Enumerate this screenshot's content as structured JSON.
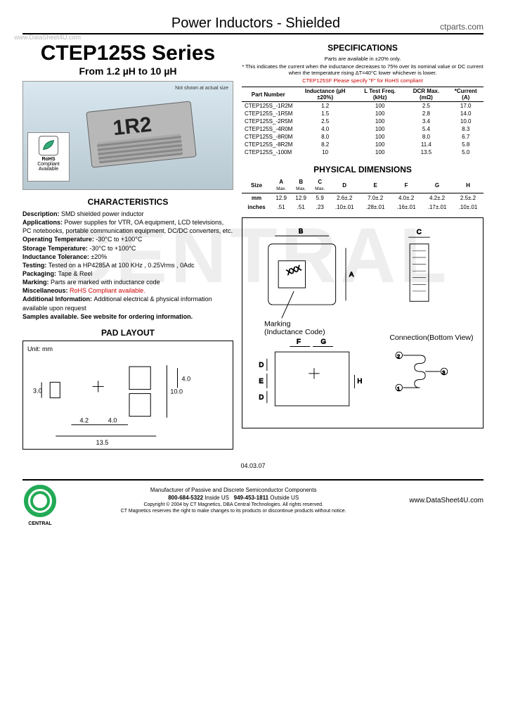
{
  "header": {
    "title": "Power Inductors - Shielded",
    "site": "ctparts.com",
    "watermark_url": "www.DataSheet4U.com"
  },
  "series": {
    "name": "CTEP125S Series",
    "range": "From 1.2 µH to 10 µH"
  },
  "product_image": {
    "chip_marking": "1R2",
    "not_shown": "Not shown at actual size",
    "rohs_top": "RoHS",
    "rohs_mid": "Compliant",
    "rohs_bot": "Available"
  },
  "characteristics": {
    "heading": "CHARACTERISTICS",
    "items": [
      {
        "k": "Description:",
        "v": "SMD shielded power inductor"
      },
      {
        "k": "Applications:",
        "v": "Power supplies for VTR, OA equipment, LCD televisions, PC notebooks, portable communication equipment, DC/DC converters, etc."
      },
      {
        "k": "Operating Temperature:",
        "v": "-30°C to +100°C"
      },
      {
        "k": "Storage Temperature:",
        "v": "-30°C to +100°C"
      },
      {
        "k": "Inductance Tolerance:",
        "v": "±20%"
      },
      {
        "k": "Testing:",
        "v": "Tested on a HP4285A at 100 KHz , 0.25Vrms , 0Adc"
      },
      {
        "k": "Packaging:",
        "v": "Tape & Reel"
      },
      {
        "k": "Marking:",
        "v": "Parts are marked with inductance code"
      },
      {
        "k": "Miscellaneous:",
        "v": "RoHS Compliant available.",
        "red": true
      },
      {
        "k": "Additional Information:",
        "v": "Additional electrical & physical information available upon request"
      }
    ],
    "samples": "Samples available. See website for ordering information."
  },
  "specs": {
    "heading": "SPECIFICATIONS",
    "note1": "Parts are available in ±20% only.",
    "note2": "* This indicates the current when the inductance decreases to 75% over its nominal value or DC current when the temperature rising ΔT=40°C lower whichever is lower.",
    "note_red": "CTEP125SF  Please specify \"F\" for RoHS compliant",
    "columns": [
      "Part Number",
      "Inductance (µH ±20%)",
      "L Test Freq. (kHz)",
      "DCR Max. (mΩ)",
      "*Current (A)"
    ],
    "rows": [
      [
        "CTEP125S_-1R2M",
        "1.2",
        "100",
        "2.5",
        "17.0"
      ],
      [
        "CTEP125S_-1R5M",
        "1.5",
        "100",
        "2.8",
        "14.0"
      ],
      [
        "CTEP125S_-2R5M",
        "2.5",
        "100",
        "3.4",
        "10.0"
      ],
      [
        "CTEP125S_-4R0M",
        "4.0",
        "100",
        "5.4",
        "8.3"
      ],
      [
        "CTEP125S_-8R0M",
        "8.0",
        "100",
        "8.0",
        "6.7"
      ],
      [
        "CTEP125S_-8R2M",
        "8.2",
        "100",
        "11.4",
        "5.8"
      ],
      [
        "CTEP125S_-100M",
        "10",
        "100",
        "13.5",
        "5.0"
      ]
    ]
  },
  "dimensions": {
    "heading": "PHYSICAL DIMENSIONS",
    "size_label": "Size",
    "cols": [
      "A",
      "B",
      "C",
      "D",
      "E",
      "F",
      "G",
      "H"
    ],
    "sub": [
      "Max.",
      "Max.",
      "Max.",
      "",
      "",
      "",
      "",
      ""
    ],
    "mm_label": "mm",
    "mm": [
      "12.9",
      "12.9",
      "5.9",
      "2.6±.2",
      "7.0±.2",
      "4.0±.2",
      "4.2±.2",
      "2.5±.2"
    ],
    "in_label": "inches",
    "in": [
      ".51",
      ".51",
      ".23",
      ".10±.01",
      ".28±.01",
      ".16±.01",
      ".17±.01",
      ".10±.01"
    ]
  },
  "diagrams": {
    "marking_label": "Marking",
    "marking_sub": "(Inductance Code)",
    "conn_label": "Connection(Bottom View)",
    "pad_heading": "PAD LAYOUT",
    "unit": "Unit: mm",
    "pad_vals": {
      "v30": "3.0",
      "v42": "4.2",
      "v40": "4.0",
      "v40b": "4.0",
      "v100": "10.0",
      "v135": "13.5"
    }
  },
  "footer": {
    "date": "04.03.07",
    "line1": "Manufacturer of Passive and Discrete Semiconductor Components",
    "phone1": "800-684-5322",
    "loc1": "Inside US",
    "phone2": "949-453-1811",
    "loc2": "Outside US",
    "copy": "Copyright © 2004 by CT Magnetics, DBA Central Technologies. All rights reserved.",
    "disc": "CT Magnetics reserves the right to make changes to its products or discontinue products without notice.",
    "url": "www.DataSheet4U.com",
    "logo": "CENTRAL"
  }
}
